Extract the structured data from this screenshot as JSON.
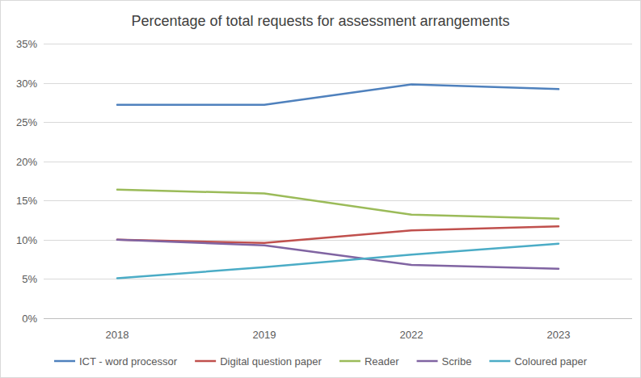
{
  "chart_data": {
    "type": "line",
    "title": "Percentage of total requests for assessment arrangements",
    "categories": [
      "2018",
      "2019",
      "2022",
      "2023"
    ],
    "series": [
      {
        "name": "ICT - word processor",
        "color": "#4f81bd",
        "values": [
          27.2,
          27.2,
          29.8,
          29.2
        ]
      },
      {
        "name": "Digital question paper",
        "color": "#c0504d",
        "values": [
          10.0,
          9.6,
          11.2,
          11.7
        ]
      },
      {
        "name": "Reader",
        "color": "#9bbb59",
        "values": [
          16.4,
          15.9,
          13.2,
          12.7
        ]
      },
      {
        "name": "Scribe",
        "color": "#8064a2",
        "values": [
          10.0,
          9.3,
          6.8,
          6.3
        ]
      },
      {
        "name": "Coloured paper",
        "color": "#4bacc6",
        "values": [
          5.1,
          6.5,
          8.1,
          9.5
        ]
      }
    ],
    "ylim": [
      0,
      35
    ],
    "yticks": [
      {
        "value": 0,
        "label": "0%"
      },
      {
        "value": 5,
        "label": "5%"
      },
      {
        "value": 10,
        "label": "10%"
      },
      {
        "value": 15,
        "label": "15%"
      },
      {
        "value": 20,
        "label": "20%"
      },
      {
        "value": 25,
        "label": "25%"
      },
      {
        "value": 30,
        "label": "30%"
      },
      {
        "value": 35,
        "label": "35%"
      }
    ],
    "grid": true,
    "legend": "bottom"
  }
}
